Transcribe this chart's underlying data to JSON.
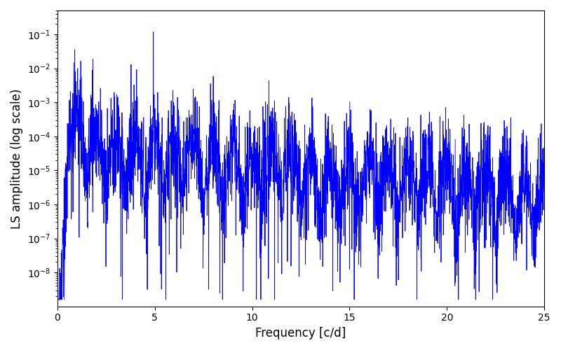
{
  "xlabel": "Frequency [c/d]",
  "ylabel": "LS amplitude (log scale)",
  "line_color": "#0000ff",
  "xlim": [
    0,
    25
  ],
  "ylim": [
    1e-09,
    0.5
  ],
  "xmin": 0.0,
  "xmax": 25.0,
  "xticks": [
    0,
    5,
    10,
    15,
    20,
    25
  ],
  "figsize": [
    8.0,
    5.0
  ],
  "dpi": 100,
  "seed": 12345,
  "n_points": 3000,
  "background": "#ffffff",
  "line_width": 0.6,
  "yticks_log": [
    -8,
    -7,
    -6,
    -5,
    -4,
    -3,
    -2,
    -1
  ]
}
